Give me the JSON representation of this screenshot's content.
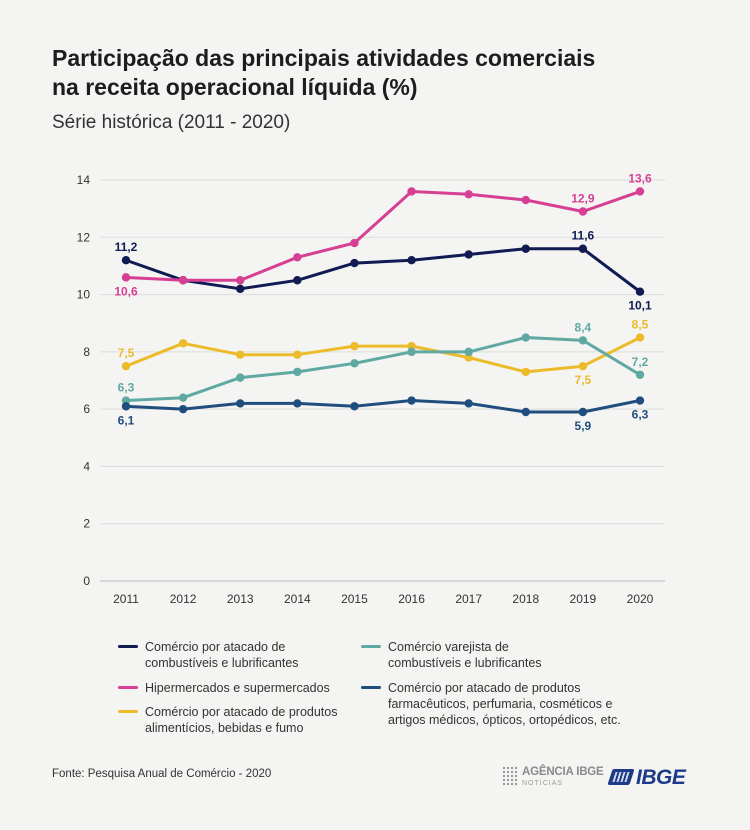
{
  "header": {
    "title_line1": "Participação das principais atividades comerciais",
    "title_line2": "na receita operacional líquida (%)",
    "subtitle": "Série histórica (2011 - 2020)"
  },
  "chart_data": {
    "type": "line",
    "x": [
      "2011",
      "2012",
      "2013",
      "2014",
      "2015",
      "2016",
      "2017",
      "2018",
      "2019",
      "2020"
    ],
    "ylim": [
      0,
      14
    ],
    "yticks": [
      0,
      2,
      4,
      6,
      8,
      10,
      12,
      14
    ],
    "grid": true,
    "legend_position": "bottom",
    "series": [
      {
        "name": "Comércio por atacado de combustíveis e lubrificantes",
        "color": "#111a52",
        "values": [
          11.2,
          10.5,
          10.2,
          10.5,
          11.1,
          11.2,
          11.4,
          11.6,
          11.6,
          10.1
        ],
        "labels": [
          {
            "i": 0,
            "text": "11,2",
            "pos": "above"
          },
          {
            "i": 8,
            "text": "11,6",
            "pos": "above"
          },
          {
            "i": 9,
            "text": "10,1",
            "pos": "below"
          }
        ]
      },
      {
        "name": "Hipermercados e supermercados",
        "color": "#d63f93",
        "values": [
          10.6,
          10.5,
          10.5,
          11.3,
          11.8,
          13.6,
          13.5,
          13.3,
          12.9,
          13.6
        ],
        "labels": [
          {
            "i": 0,
            "text": "10,6",
            "pos": "below"
          },
          {
            "i": 8,
            "text": "12,9",
            "pos": "above"
          },
          {
            "i": 9,
            "text": "13,6",
            "pos": "above"
          }
        ]
      },
      {
        "name": "Comércio por atacado de produtos alimentícios, bebidas e fumo",
        "color": "#ecbb2a",
        "values": [
          7.5,
          8.3,
          7.9,
          7.9,
          8.2,
          8.2,
          7.8,
          7.3,
          7.5,
          8.5
        ],
        "labels": [
          {
            "i": 0,
            "text": "7,5",
            "pos": "above"
          },
          {
            "i": 8,
            "text": "7,5",
            "pos": "below"
          },
          {
            "i": 9,
            "text": "8,5",
            "pos": "above"
          }
        ]
      },
      {
        "name": "Comércio varejista de combustíveis e lubrificantes",
        "color": "#5fa9a2",
        "values": [
          6.3,
          6.4,
          7.1,
          7.3,
          7.6,
          8.0,
          8.0,
          8.5,
          8.4,
          7.2
        ],
        "labels": [
          {
            "i": 0,
            "text": "6,3",
            "pos": "above"
          },
          {
            "i": 8,
            "text": "8,4",
            "pos": "above"
          },
          {
            "i": 9,
            "text": "7,2",
            "pos": "above"
          }
        ]
      },
      {
        "name": "Comércio por atacado de produtos farmacêuticos, perfumaria, cosméticos e artigos médicos, ópticos, ortopédicos, etc.",
        "color": "#1f4e7e",
        "values": [
          6.1,
          6.0,
          6.2,
          6.2,
          6.1,
          6.3,
          6.2,
          5.9,
          5.9,
          6.3
        ],
        "labels": [
          {
            "i": 0,
            "text": "6,1",
            "pos": "below"
          },
          {
            "i": 8,
            "text": "5,9",
            "pos": "below"
          },
          {
            "i": 9,
            "text": "6,3",
            "pos": "below"
          }
        ]
      }
    ]
  },
  "legend": {
    "items": [
      {
        "line1": "Comércio por atacado de",
        "line2": "combustíveis e lubrificantes",
        "color": "#111a52"
      },
      {
        "line1": "Hipermercados e supermercados",
        "line2": "",
        "color": "#d63f93"
      },
      {
        "line1": "Comércio por atacado de produtos",
        "line2": "alimentícios, bebidas e fumo",
        "color": "#ecbb2a"
      },
      {
        "line1": "Comércio varejista de",
        "line2": "combustíveis e lubrificantes",
        "color": "#5fa9a2"
      },
      {
        "line1": "Comércio por atacado de produtos",
        "line2": "farmacêuticos, perfumaria, cosméticos e",
        "line3": "artigos médicos, ópticos, ortopédicos, etc.",
        "color": "#1f4e7e"
      }
    ]
  },
  "footer": {
    "source": "Fonte: Pesquisa Anual de Comércio - 2020",
    "agencia_line1": "AGÊNCIA IBGE",
    "agencia_line2": "NOTÍCIAS",
    "ibge_logo": "IBGE"
  }
}
